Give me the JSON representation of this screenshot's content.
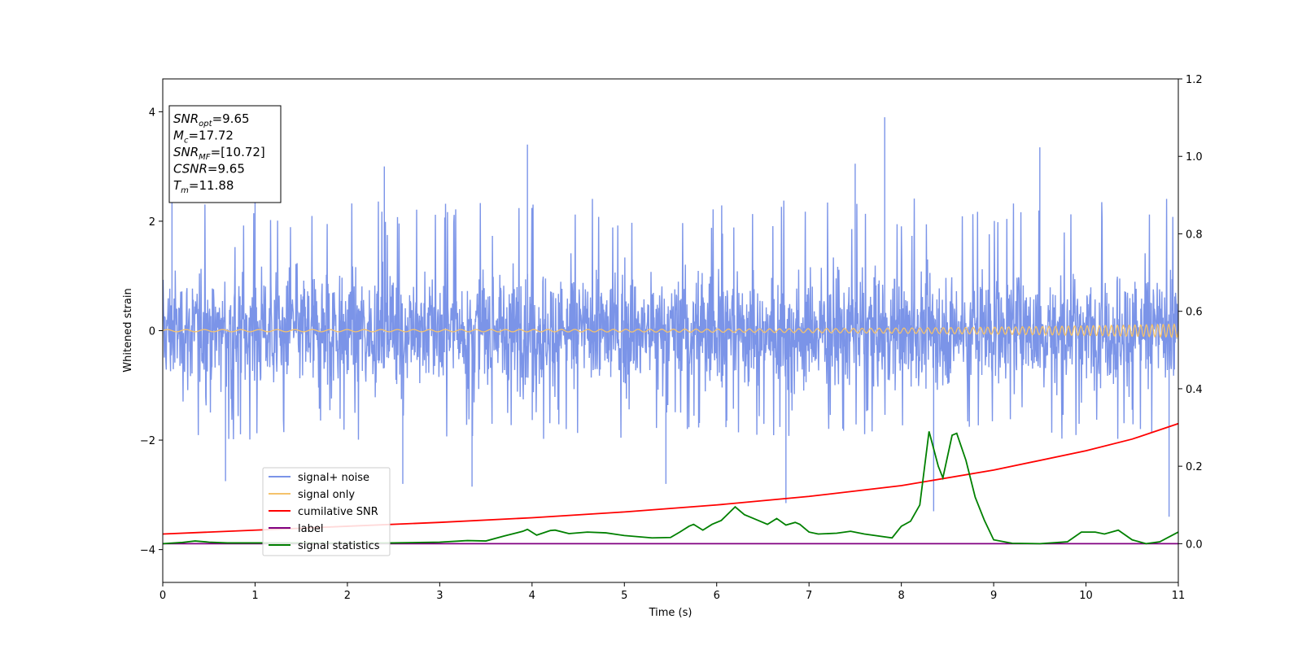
{
  "chart_data": {
    "type": "line",
    "xlabel": "Time (s)",
    "ylabel": "Whitened strain",
    "xlim": [
      0,
      11
    ],
    "ylim": [
      -4.6,
      4.6
    ],
    "y2lim": [
      -0.1,
      1.2
    ],
    "x_ticks": [
      "0",
      "1",
      "2",
      "3",
      "4",
      "5",
      "6",
      "7",
      "8",
      "9",
      "10",
      "11"
    ],
    "y_ticks": [
      "−4",
      "−2",
      "0",
      "2",
      "4"
    ],
    "y2_ticks": [
      "0.0",
      "0.2",
      "0.4",
      "0.6",
      "0.8",
      "1.0",
      "1.2"
    ],
    "info_box": [
      {
        "base": "SNR",
        "sub": "opt",
        "value": "=9.65"
      },
      {
        "base": "M",
        "sub": "c",
        "value": "=17.72"
      },
      {
        "base": "SNR",
        "sub": "MF",
        "value": "=[10.72]"
      },
      {
        "base": "CSNR",
        "sub": "",
        "value": "=9.65"
      },
      {
        "base": "T",
        "sub": "m",
        "value": "=11.88"
      }
    ],
    "legend_position": "lower-left",
    "series": [
      {
        "name": "signal+ noise",
        "color": "#7b94e8",
        "axis": "left",
        "kind": "noise",
        "envelope_upper": 2.3,
        "envelope_lower": -1.9,
        "peaks": [
          [
            0.1,
            2.6
          ],
          [
            0.68,
            -2.75
          ],
          [
            1.0,
            2.75
          ],
          [
            2.4,
            3.0
          ],
          [
            2.6,
            -2.8
          ],
          [
            3.35,
            -2.85
          ],
          [
            3.95,
            3.4
          ],
          [
            5.45,
            -2.8
          ],
          [
            6.75,
            -3.15
          ],
          [
            7.5,
            3.05
          ],
          [
            7.82,
            3.9
          ],
          [
            8.35,
            -3.3
          ],
          [
            9.5,
            3.35
          ],
          [
            10.9,
            -3.4
          ]
        ]
      },
      {
        "name": "signal only",
        "color": "#f5c26b",
        "axis": "left",
        "kind": "chirp",
        "amplitude_start": 0.02,
        "amplitude_end": 0.12
      },
      {
        "name": "cumilative SNR",
        "color": "#ff0000",
        "axis": "right",
        "x": [
          0,
          1,
          2,
          3,
          4,
          5,
          6,
          7,
          8,
          9,
          10,
          10.5,
          11
        ],
        "y": [
          0.025,
          0.035,
          0.045,
          0.055,
          0.067,
          0.082,
          0.1,
          0.122,
          0.15,
          0.19,
          0.24,
          0.27,
          0.31
        ]
      },
      {
        "name": "label",
        "color": "#800080",
        "axis": "right",
        "x": [
          0,
          11
        ],
        "y": [
          0.0,
          0.0
        ]
      },
      {
        "name": "signal statistics",
        "color": "#008000",
        "axis": "right",
        "x": [
          0,
          0.2,
          0.35,
          0.5,
          0.7,
          1.0,
          1.5,
          2.0,
          2.5,
          3.0,
          3.3,
          3.5,
          3.7,
          3.9,
          3.95,
          4.05,
          4.2,
          4.25,
          4.4,
          4.6,
          4.8,
          5.0,
          5.3,
          5.5,
          5.6,
          5.7,
          5.75,
          5.85,
          5.95,
          6.05,
          6.2,
          6.3,
          6.45,
          6.55,
          6.65,
          6.75,
          6.85,
          6.9,
          7.0,
          7.1,
          7.3,
          7.45,
          7.6,
          7.9,
          8.0,
          8.1,
          8.2,
          8.3,
          8.4,
          8.45,
          8.55,
          8.6,
          8.7,
          8.8,
          8.9,
          9.0,
          9.2,
          9.5,
          9.8,
          9.95,
          10.1,
          10.2,
          10.35,
          10.5,
          10.65,
          10.8,
          11.0
        ],
        "y": [
          0.0,
          0.003,
          0.007,
          0.004,
          0.002,
          0.002,
          0.002,
          0.001,
          0.002,
          0.004,
          0.008,
          0.007,
          0.02,
          0.032,
          0.037,
          0.022,
          0.034,
          0.035,
          0.026,
          0.03,
          0.028,
          0.021,
          0.015,
          0.016,
          0.03,
          0.045,
          0.05,
          0.035,
          0.05,
          0.06,
          0.095,
          0.075,
          0.06,
          0.05,
          0.065,
          0.048,
          0.055,
          0.05,
          0.03,
          0.025,
          0.027,
          0.032,
          0.025,
          0.015,
          0.045,
          0.058,
          0.1,
          0.29,
          0.2,
          0.17,
          0.28,
          0.285,
          0.215,
          0.12,
          0.06,
          0.01,
          0.001,
          0.0,
          0.005,
          0.03,
          0.03,
          0.025,
          0.035,
          0.01,
          0.0,
          0.005,
          0.03
        ]
      }
    ]
  }
}
